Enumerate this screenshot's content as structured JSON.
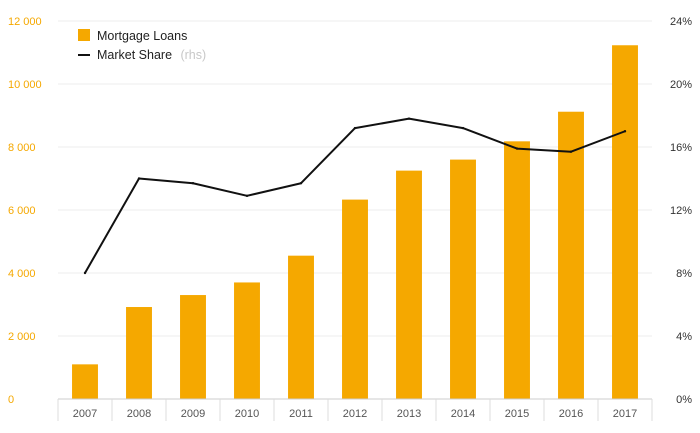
{
  "chart_data": {
    "type": "bar",
    "categories": [
      "2007",
      "2008",
      "2009",
      "2010",
      "2011",
      "2012",
      "2013",
      "2014",
      "2015",
      "2016",
      "2017"
    ],
    "series": [
      {
        "name": "Mortgage Loans",
        "type": "bar",
        "axis": "left",
        "color": "#f5a800",
        "values": [
          1100,
          2920,
          3300,
          3700,
          4550,
          6330,
          7250,
          7600,
          8180,
          9120,
          11230
        ]
      },
      {
        "name": "Market Share",
        "type": "line",
        "axis": "right",
        "color": "#111111",
        "values": [
          8.0,
          14.0,
          13.7,
          12.9,
          13.7,
          17.2,
          17.8,
          17.2,
          15.9,
          15.7,
          17.0
        ]
      }
    ],
    "legend": {
      "items": [
        {
          "label": "Mortgage Loans",
          "note": ""
        },
        {
          "label": "Market Share",
          "note": "(rhs)"
        }
      ],
      "position": "top-left"
    },
    "y_left": {
      "ylim": [
        0,
        12000
      ],
      "ticks": [
        0,
        2000,
        4000,
        6000,
        8000,
        10000,
        12000
      ],
      "tick_labels": [
        "0",
        "2 000",
        "4 000",
        "6 000",
        "8 000",
        "10 000",
        "12 000"
      ],
      "color": "#f5a800"
    },
    "y_right": {
      "ylim": [
        0,
        24
      ],
      "ticks": [
        0,
        4,
        8,
        12,
        16,
        20,
        24
      ],
      "tick_labels": [
        "0%",
        "4%",
        "8%",
        "12%",
        "16%",
        "20%",
        "24%"
      ]
    },
    "grid": true
  }
}
